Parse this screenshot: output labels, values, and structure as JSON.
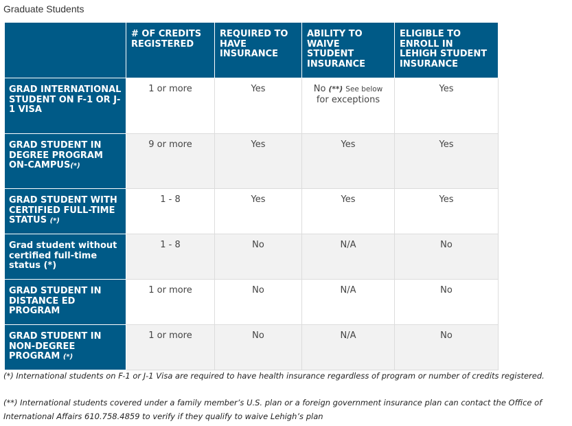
{
  "caption": "Graduate Students",
  "headers": [
    "",
    "# OF CREDITS REGISTERED",
    "REQUIRED TO HAVE INSURANCE",
    "ABILITY TO WAIVE STUDENT INSURANCE",
    "ELIGIBLE TO ENROLL IN LEHIGH STUDENT INSURANCE"
  ],
  "rows": [
    {
      "label": "GRAD INTERNATIONAL STUDENT ON F-1 OR J-1 VISA",
      "label_suffix": "",
      "credits": "1 or more",
      "required": "Yes",
      "waive": "No",
      "waive_marker": "(**)",
      "waive_note": "See below",
      "waive_note2": "for exceptions",
      "eligible": "Yes"
    },
    {
      "label": "GRAD STUDENT IN DEGREE PROGRAM ON-CAMPUS",
      "label_suffix": "(*)",
      "credits": "9 or more",
      "required": "Yes",
      "waive": "Yes",
      "eligible": "Yes"
    },
    {
      "label": "GRAD STUDENT WITH CERTIFIED FULL-TIME STATUS",
      "label_suffix": "(*)",
      "credits": "1 - 8",
      "required": "Yes",
      "waive": "Yes",
      "eligible": "Yes"
    },
    {
      "label": "Grad student without certified full-time status",
      "label_suffix": "(*)",
      "credits": "1 - 8",
      "required": "No",
      "waive": "N/A",
      "eligible": "No"
    },
    {
      "label": "GRAD STUDENT IN DISTANCE ED PROGRAM",
      "label_suffix": "",
      "credits": "1 or more",
      "required": "No",
      "waive": "N/A",
      "eligible": "No"
    },
    {
      "label": "GRAD STUDENT IN NON-DEGREE PROGRAM",
      "label_suffix": "(*)",
      "credits": "1 or more",
      "required": "No",
      "waive": "N/A",
      "eligible": "No"
    }
  ],
  "footnotes": [
    "(*) International students on F-1 or J-1 Visa are required to have health insurance regardless of program or number of credits registered.",
    "(**) International students covered under a family member’s U.S. plan or a foreign government insurance plan can contact the Office of International Affairs 610.758.4859 to verify if they qualify to waive Lehigh’s plan"
  ]
}
